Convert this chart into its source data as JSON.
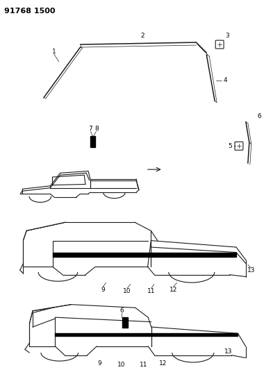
{
  "title": "91768 1500",
  "bg_color": "#ffffff",
  "title_fontsize": 8,
  "title_fontweight": "bold",
  "fig_width": 3.93,
  "fig_height": 5.33,
  "dpi": 100,
  "line_color": "#1a1a1a",
  "label_fontsize": 6.5
}
